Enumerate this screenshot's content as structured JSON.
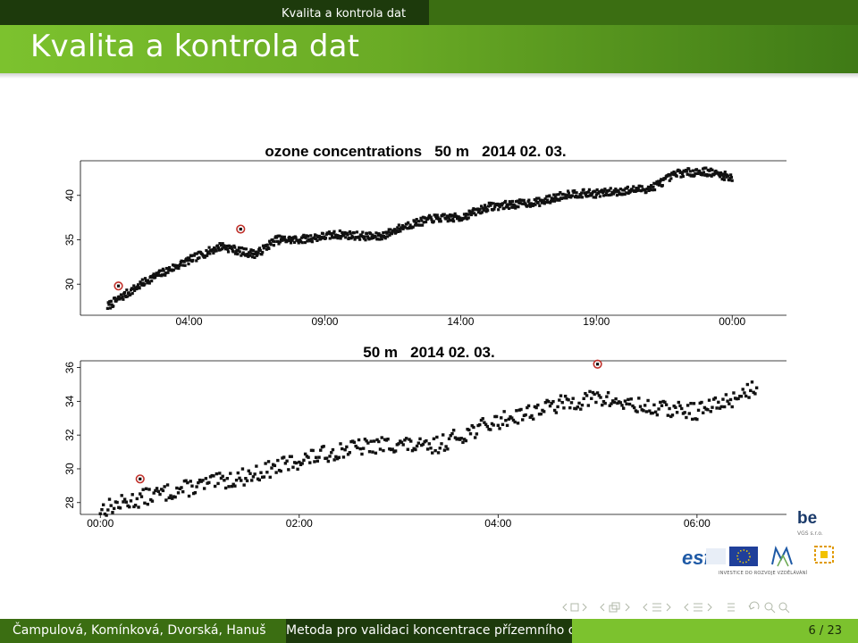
{
  "header": {
    "section_label": "Kvalita a kontrola dat",
    "title": "Kvalita a kontrola dat"
  },
  "footer": {
    "authors": "Čampulová, Komínková, Dvorská, Hanuš",
    "talk_title": "Metoda pro validaci koncentrace přízemního o",
    "page": "6 / 23"
  },
  "logos": {
    "be_text": "be",
    "be_sub": "VGS s.r.o.",
    "caption": "INVESTICE DO ROZVOJE VZDĚLÁVÁNÍ"
  },
  "colors": {
    "top_bar_dark": "#1d3a0c",
    "top_bar_mid": "#3b6e12",
    "title_green": "#7cc22e",
    "outlier_ring": "#c0302a"
  },
  "chart_data": [
    {
      "type": "scatter",
      "title": "ozone concentrations   50 m   2014 02. 03.",
      "xlabel": "",
      "ylabel": "",
      "x_ticks": [
        "04:00",
        "09:00",
        "14:00",
        "19:00",
        "00:00"
      ],
      "x_tick_hours": [
        4,
        9,
        14,
        19,
        24
      ],
      "x_range_hours": [
        0,
        26
      ],
      "y_ticks": [
        30,
        35,
        40
      ],
      "ylim": [
        26.5,
        43.9
      ],
      "trend": {
        "hours": [
          1.0,
          2.5,
          4.0,
          5.2,
          6.0,
          6.5,
          7.2,
          8.0,
          9.5,
          11.0,
          12.0,
          13.0,
          14.0,
          15.0,
          17.0,
          18.0,
          19.0,
          21.0,
          22.0,
          23.0,
          24.0
        ],
        "values": [
          27.5,
          30.5,
          32.7,
          34.3,
          33.6,
          33.4,
          35.0,
          35.0,
          35.6,
          35.3,
          36.6,
          37.4,
          37.5,
          38.7,
          39.3,
          40.2,
          40.2,
          40.8,
          42.5,
          42.7,
          42.0
        ]
      },
      "outliers": [
        {
          "hour": 1.4,
          "value": 29.8
        },
        {
          "hour": 5.9,
          "value": 36.2
        }
      ]
    },
    {
      "type": "scatter",
      "title": "50 m   2014 02. 03.",
      "xlabel": "",
      "ylabel": "",
      "x_ticks": [
        "00:00",
        "02:00",
        "04:00",
        "06:00"
      ],
      "x_tick_hours": [
        0,
        2,
        4,
        6
      ],
      "x_range_hours": [
        -0.2,
        6.9
      ],
      "y_ticks": [
        28,
        30,
        32,
        34,
        36
      ],
      "ylim": [
        27.3,
        36.4
      ],
      "trend": {
        "hours": [
          0.0,
          0.5,
          1.0,
          1.5,
          2.0,
          2.5,
          3.0,
          3.3,
          3.8,
          4.2,
          4.6,
          5.0,
          5.5,
          6.0,
          6.3,
          6.6
        ],
        "values": [
          27.6,
          28.4,
          29.0,
          29.6,
          30.5,
          31.2,
          31.5,
          31.2,
          32.4,
          33.2,
          33.8,
          34.2,
          33.6,
          33.4,
          34.0,
          34.9
        ]
      },
      "outliers": [
        {
          "hour": 0.4,
          "value": 29.4
        },
        {
          "hour": 5.0,
          "value": 36.2
        }
      ]
    }
  ]
}
